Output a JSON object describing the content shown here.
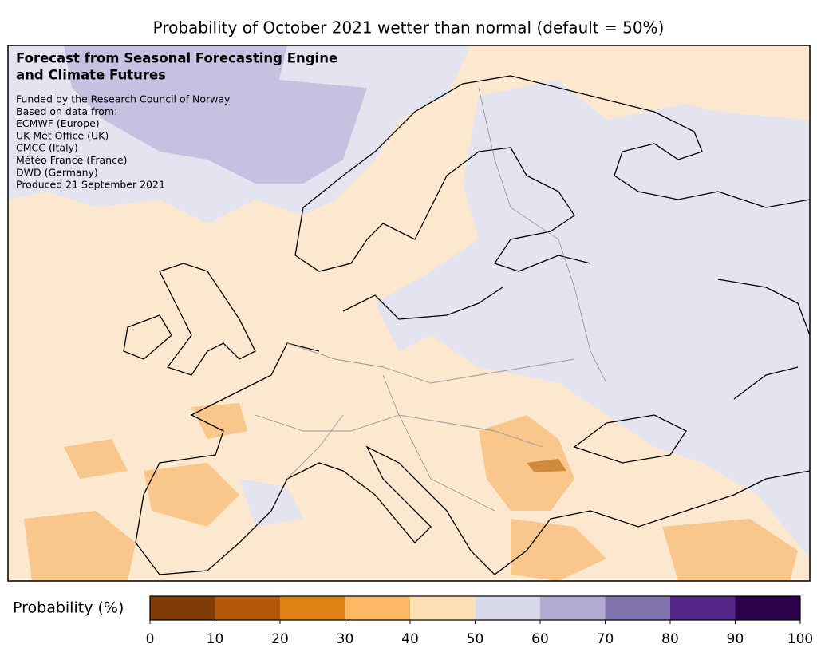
{
  "title": "Probability of October 2021 wetter than normal (default = 50%)",
  "annotation": {
    "heading": [
      "Forecast from Seasonal Forecasting Engine",
      "and Climate Futures"
    ],
    "lines": [
      "Funded by the Research Council of Norway",
      "Based on data from:",
      "ECMWF (Europe)",
      "UK Met Office (UK)",
      "CMCC (Italy)",
      "Météo France (France)",
      "DWD (Germany)",
      "Produced 21 September 2021"
    ]
  },
  "colorbar": {
    "label": "Probability (%)",
    "xlim": [
      0,
      100
    ],
    "ticks": [
      0,
      10,
      20,
      30,
      40,
      50,
      60,
      70,
      80,
      90,
      100
    ],
    "colors": [
      "#7f3b08",
      "#b35806",
      "#e08214",
      "#fdb863",
      "#fee0b6",
      "#d8daeb",
      "#b2abd2",
      "#8073ac",
      "#542788",
      "#2d004b"
    ]
  }
}
